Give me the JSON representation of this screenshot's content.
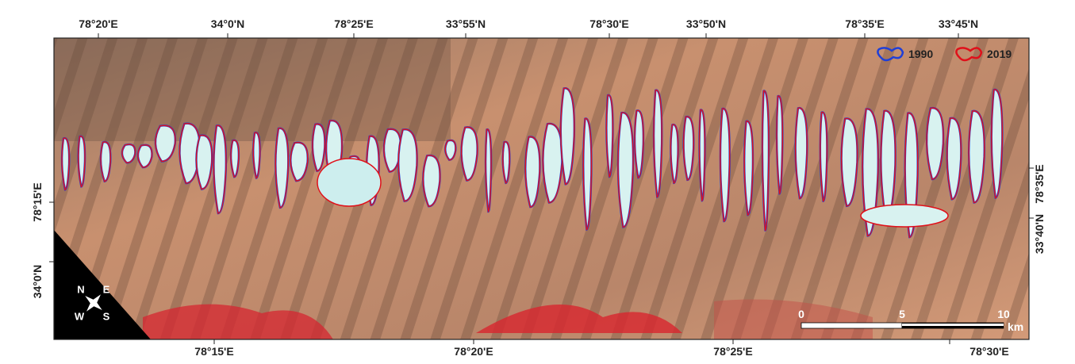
{
  "top_labels": [
    "78°20'E",
    "34°0'N",
    "78°25'E",
    "33°55'N",
    "78°30'E",
    "33°50'N",
    "78°35'E",
    "33°45'N"
  ],
  "bottom_labels": [
    "78°15'E",
    "78°20'E",
    "78°25'E",
    "78°30'E"
  ],
  "left_labels": [
    "78°15'E",
    "34°0'N"
  ],
  "right_labels": [
    "78°35'E",
    "33°40'N"
  ],
  "legend": [
    {
      "label": "1990",
      "color": "#1f3fd8"
    },
    {
      "label": "2019",
      "color": "#e0101a"
    }
  ],
  "scale_bar": {
    "labels": [
      "0",
      "5",
      "10"
    ],
    "unit": "km"
  },
  "compass": [
    "N",
    "E",
    "S",
    "W"
  ]
}
